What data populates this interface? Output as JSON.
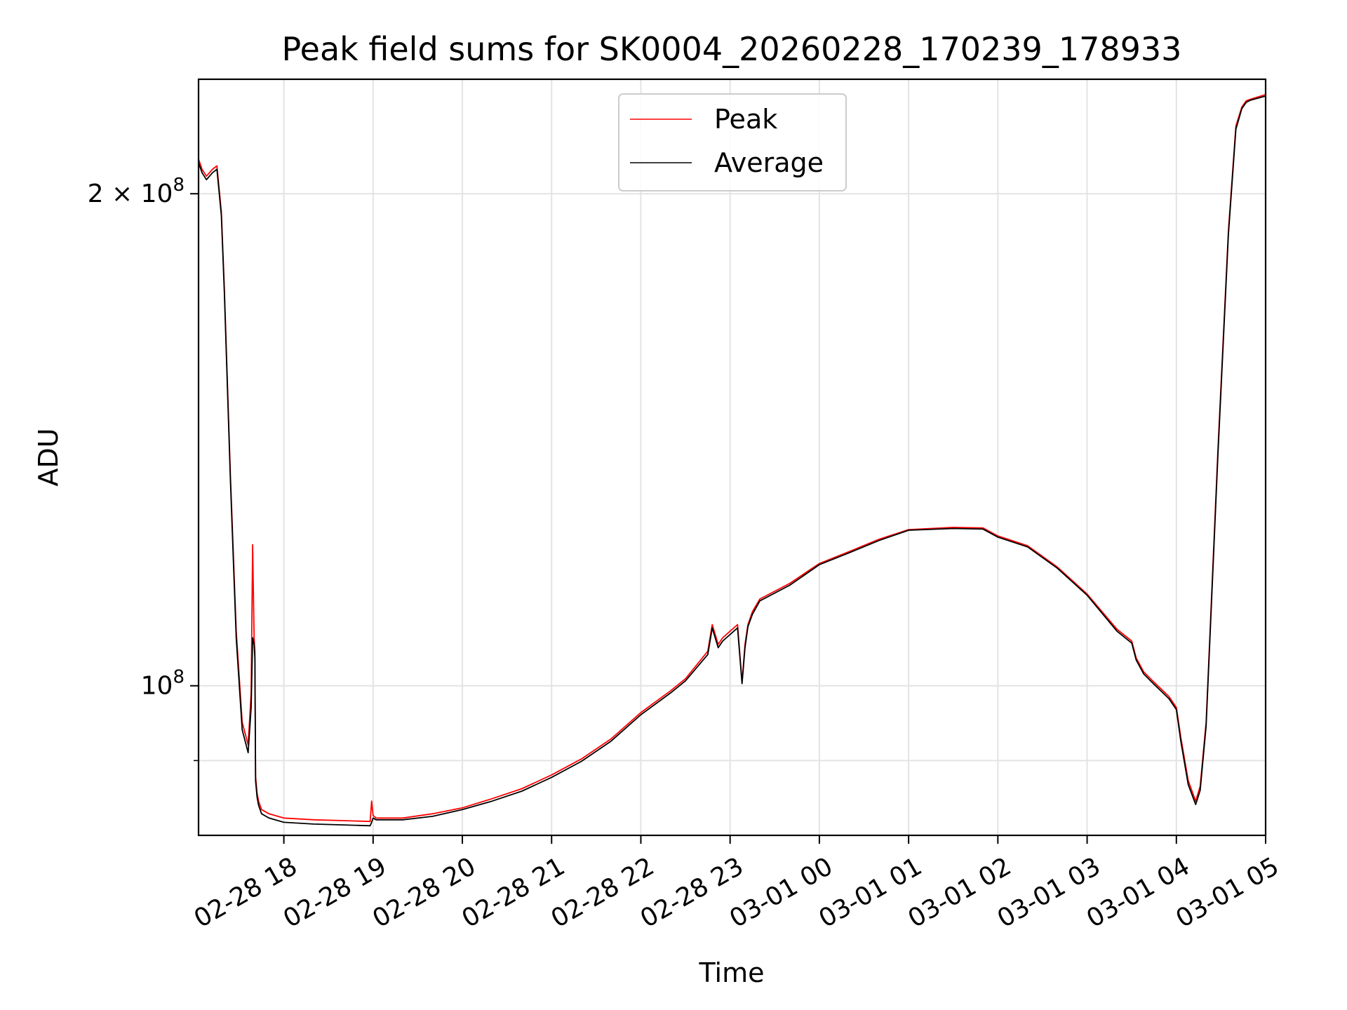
{
  "chart_data": {
    "type": "line",
    "title": "Peak field sums for SK0004_20260228_170239_178933",
    "xlabel": "Time",
    "ylabel": "ADU",
    "x_type": "datetime",
    "xlim": [
      "2026-02-28 17:02:39",
      "2026-03-01 05:00:00"
    ],
    "y_scale": "log",
    "ylim": [
      81000000,
      235000000
    ],
    "grid": true,
    "legend_position": "upper center",
    "x_ticks": [
      {
        "value": "2026-02-28 18:00",
        "label": "02-28 18"
      },
      {
        "value": "2026-02-28 19:00",
        "label": "02-28 19"
      },
      {
        "value": "2026-02-28 20:00",
        "label": "02-28 20"
      },
      {
        "value": "2026-02-28 21:00",
        "label": "02-28 21"
      },
      {
        "value": "2026-02-28 22:00",
        "label": "02-28 22"
      },
      {
        "value": "2026-02-28 23:00",
        "label": "02-28 23"
      },
      {
        "value": "2026-03-01 00:00",
        "label": "03-01 00"
      },
      {
        "value": "2026-03-01 01:00",
        "label": "03-01 01"
      },
      {
        "value": "2026-03-01 02:00",
        "label": "03-01 02"
      },
      {
        "value": "2026-03-01 03:00",
        "label": "03-01 03"
      },
      {
        "value": "2026-03-01 04:00",
        "label": "03-01 04"
      },
      {
        "value": "2026-03-01 05:00",
        "label": "03-01 05"
      }
    ],
    "y_ticks": [
      {
        "value": 100000000,
        "base": "10",
        "exp": "8",
        "coef": ""
      },
      {
        "value": 200000000,
        "base": "10",
        "exp": "8",
        "coef": "2 × "
      }
    ],
    "y_minor_ticks": [
      90000000
    ],
    "series": [
      {
        "name": "Peak",
        "color": "#ff0000",
        "x": [
          "2026-02-28 17:02:39",
          "2026-02-28 17:05",
          "2026-02-28 17:08",
          "2026-02-28 17:12",
          "2026-02-28 17:15",
          "2026-02-28 17:18",
          "2026-02-28 17:20",
          "2026-02-28 17:24",
          "2026-02-28 17:28",
          "2026-02-28 17:32",
          "2026-02-28 17:36",
          "2026-02-28 17:38",
          "2026-02-28 17:39",
          "2026-02-28 17:40",
          "2026-02-28 17:40:30",
          "2026-02-28 17:41",
          "2026-02-28 17:42",
          "2026-02-28 17:43",
          "2026-02-28 17:45",
          "2026-02-28 17:50",
          "2026-02-28 18:00",
          "2026-02-28 18:20",
          "2026-02-28 18:40",
          "2026-02-28 18:58",
          "2026-02-28 18:59",
          "2026-02-28 19:00",
          "2026-02-28 19:02",
          "2026-02-28 19:20",
          "2026-02-28 19:40",
          "2026-02-28 20:00",
          "2026-02-28 20:20",
          "2026-02-28 20:40",
          "2026-02-28 21:00",
          "2026-02-28 21:20",
          "2026-02-28 21:40",
          "2026-02-28 22:00",
          "2026-02-28 22:20",
          "2026-02-28 22:30",
          "2026-02-28 22:45",
          "2026-02-28 22:48",
          "2026-02-28 22:52",
          "2026-02-28 22:55",
          "2026-02-28 23:05",
          "2026-02-28 23:08",
          "2026-02-28 23:10",
          "2026-02-28 23:12",
          "2026-02-28 23:15",
          "2026-02-28 23:20",
          "2026-02-28 23:40",
          "2026-03-01 00:00",
          "2026-03-01 00:20",
          "2026-03-01 00:40",
          "2026-03-01 01:00",
          "2026-03-01 01:30",
          "2026-03-01 01:50",
          "2026-03-01 02:00",
          "2026-03-01 02:20",
          "2026-03-01 02:40",
          "2026-03-01 03:00",
          "2026-03-01 03:20",
          "2026-03-01 03:30",
          "2026-03-01 03:33",
          "2026-03-01 03:38",
          "2026-03-01 03:45",
          "2026-03-01 03:50",
          "2026-03-01 03:55",
          "2026-03-01 04:00",
          "2026-03-01 04:03",
          "2026-03-01 04:08",
          "2026-03-01 04:13",
          "2026-03-01 04:16",
          "2026-03-01 04:20",
          "2026-03-01 04:28",
          "2026-03-01 04:35",
          "2026-03-01 04:40",
          "2026-03-01 04:44",
          "2026-03-01 04:47",
          "2026-03-01 04:50",
          "2026-03-01 05:00"
        ],
        "y": [
          210000000,
          207000000,
          205000000,
          207000000,
          208000000,
          195000000,
          175000000,
          135000000,
          108000000,
          95000000,
          92000000,
          99000000,
          122000000,
          107000000,
          105000000,
          88000000,
          86000000,
          85000000,
          84000000,
          83500000,
          83000000,
          82800000,
          82700000,
          82600000,
          85000000,
          83300000,
          83000000,
          83000000,
          83500000,
          84200000,
          85300000,
          86500000,
          88200000,
          90200000,
          92800000,
          96300000,
          99300000,
          101000000,
          105000000,
          109000000,
          106000000,
          107000000,
          109000000,
          100500000,
          106000000,
          109000000,
          111000000,
          113000000,
          115500000,
          118800000,
          120800000,
          122900000,
          124600000,
          125000000,
          124900000,
          123500000,
          121800000,
          118200000,
          113800000,
          108300000,
          106500000,
          104000000,
          102000000,
          100500000,
          99500000,
          98500000,
          97000000,
          93000000,
          87500000,
          85000000,
          86800000,
          95000000,
          140000000,
          190000000,
          220000000,
          226000000,
          228000000,
          228500000,
          230000000
        ]
      },
      {
        "name": "Average",
        "color": "#000000",
        "x": [
          "2026-02-28 17:02:39",
          "2026-02-28 17:05",
          "2026-02-28 17:08",
          "2026-02-28 17:12",
          "2026-02-28 17:15",
          "2026-02-28 17:18",
          "2026-02-28 17:20",
          "2026-02-28 17:24",
          "2026-02-28 17:28",
          "2026-02-28 17:32",
          "2026-02-28 17:36",
          "2026-02-28 17:38",
          "2026-02-28 17:39",
          "2026-02-28 17:40",
          "2026-02-28 17:40:30",
          "2026-02-28 17:41",
          "2026-02-28 17:42",
          "2026-02-28 17:43",
          "2026-02-28 17:45",
          "2026-02-28 17:50",
          "2026-02-28 18:00",
          "2026-02-28 18:20",
          "2026-02-28 18:40",
          "2026-02-28 18:58",
          "2026-02-28 18:59",
          "2026-02-28 19:00",
          "2026-02-28 19:02",
          "2026-02-28 19:20",
          "2026-02-28 19:40",
          "2026-02-28 20:00",
          "2026-02-28 20:20",
          "2026-02-28 20:40",
          "2026-02-28 21:00",
          "2026-02-28 21:20",
          "2026-02-28 21:40",
          "2026-02-28 22:00",
          "2026-02-28 22:20",
          "2026-02-28 22:30",
          "2026-02-28 22:45",
          "2026-02-28 22:48",
          "2026-02-28 22:52",
          "2026-02-28 22:55",
          "2026-02-28 23:05",
          "2026-02-28 23:08",
          "2026-02-28 23:10",
          "2026-02-28 23:12",
          "2026-02-28 23:15",
          "2026-02-28 23:20",
          "2026-02-28 23:40",
          "2026-03-01 00:00",
          "2026-03-01 00:20",
          "2026-03-01 00:40",
          "2026-03-01 01:00",
          "2026-03-01 01:30",
          "2026-03-01 01:50",
          "2026-03-01 02:00",
          "2026-03-01 02:20",
          "2026-03-01 02:40",
          "2026-03-01 03:00",
          "2026-03-01 03:20",
          "2026-03-01 03:30",
          "2026-03-01 03:33",
          "2026-03-01 03:38",
          "2026-03-01 03:45",
          "2026-03-01 03:50",
          "2026-03-01 03:55",
          "2026-03-01 04:00",
          "2026-03-01 04:03",
          "2026-03-01 04:08",
          "2026-03-01 04:13",
          "2026-03-01 04:16",
          "2026-03-01 04:20",
          "2026-03-01 04:28",
          "2026-03-01 04:35",
          "2026-03-01 04:40",
          "2026-03-01 04:44",
          "2026-03-01 04:47",
          "2026-03-01 04:50",
          "2026-03-01 05:00"
        ],
        "y": [
          209000000,
          206000000,
          204000000,
          206000000,
          207000000,
          194000000,
          174000000,
          134000000,
          107000000,
          94000000,
          91000000,
          97000000,
          107000000,
          106000000,
          104000000,
          87500000,
          85500000,
          84500000,
          83500000,
          83000000,
          82500000,
          82300000,
          82200000,
          82100000,
          82500000,
          83000000,
          82800000,
          82800000,
          83200000,
          84000000,
          85000000,
          86200000,
          87900000,
          89900000,
          92500000,
          96000000,
          99000000,
          100700000,
          104500000,
          108500000,
          105500000,
          106500000,
          108500000,
          100300000,
          105500000,
          108700000,
          110600000,
          112700000,
          115200000,
          118600000,
          120600000,
          122700000,
          124500000,
          124800000,
          124700000,
          123300000,
          121600000,
          118000000,
          113600000,
          108000000,
          106200000,
          103700000,
          101700000,
          100200000,
          99200000,
          98200000,
          96700000,
          92500000,
          87000000,
          84600000,
          86300000,
          94500000,
          139000000,
          189000000,
          219000000,
          225500000,
          227500000,
          228200000,
          229500000
        ]
      }
    ]
  }
}
